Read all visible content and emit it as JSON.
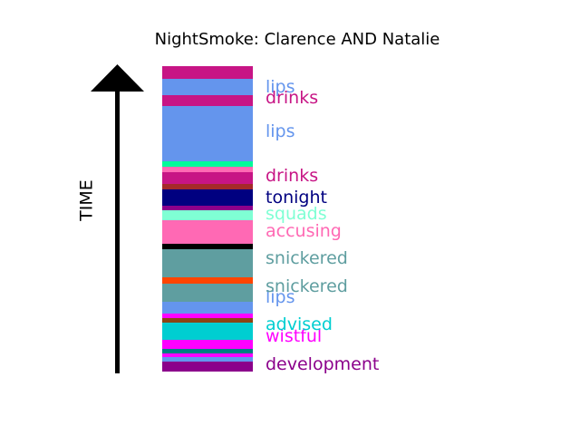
{
  "chart_data": {
    "type": "bar",
    "title": "NightSmoke: Clarence AND Natalie",
    "axis_label": "TIME",
    "segments": [
      {
        "color": "#8B008B"
      },
      {
        "color": "#6495ED"
      },
      {
        "color": "#FF00FF"
      },
      {
        "color": "#008080"
      },
      {
        "color": "#FF00FF"
      },
      {
        "color": "#FF00FF"
      },
      {
        "color": "#00CED1"
      },
      {
        "color": "#00CED1"
      },
      {
        "color": "#8B4513"
      },
      {
        "color": "#FF00FF"
      },
      {
        "color": "#6495ED"
      },
      {
        "color": "#5F9EA0"
      },
      {
        "color": "#5F9EA0"
      },
      {
        "color": "#FF4500"
      },
      {
        "color": "#5F9EA0"
      },
      {
        "color": "#5F9EA0"
      },
      {
        "color": "#5F9EA0"
      },
      {
        "color": "#000000"
      },
      {
        "color": "#FF69B4"
      },
      {
        "color": "#FF69B4"
      },
      {
        "color": "#7FFFD4"
      },
      {
        "color": "#8B008B"
      },
      {
        "color": "#000080"
      },
      {
        "color": "#A52A2A"
      },
      {
        "color": "#C71585"
      },
      {
        "color": "#FF69B4"
      },
      {
        "color": "#00FA9A"
      },
      {
        "color": "#6495ED"
      },
      {
        "color": "#6495ED"
      },
      {
        "color": "#C71585"
      },
      {
        "color": "#6495ED"
      },
      {
        "color": "#C71585"
      }
    ],
    "labels": [
      {
        "text": "development",
        "color": "#8B008B"
      },
      {
        "text": "wistful",
        "color": "#FF00FF"
      },
      {
        "text": "advised",
        "color": "#00CED1"
      },
      {
        "text": "lips",
        "color": "#6495ED"
      },
      {
        "text": "snickered",
        "color": "#5F9EA0"
      },
      {
        "text": "snickered",
        "color": "#5F9EA0"
      },
      {
        "text": "accusing",
        "color": "#FF69B4"
      },
      {
        "text": "squads",
        "color": "#7FFFD4"
      },
      {
        "text": "tonight",
        "color": "#000080"
      },
      {
        "text": "drinks",
        "color": "#C71585"
      },
      {
        "text": "lips",
        "color": "#6495ED"
      },
      {
        "text": "drinks",
        "color": "#C71585"
      },
      {
        "text": "lips",
        "color": "#6495ED"
      }
    ]
  }
}
